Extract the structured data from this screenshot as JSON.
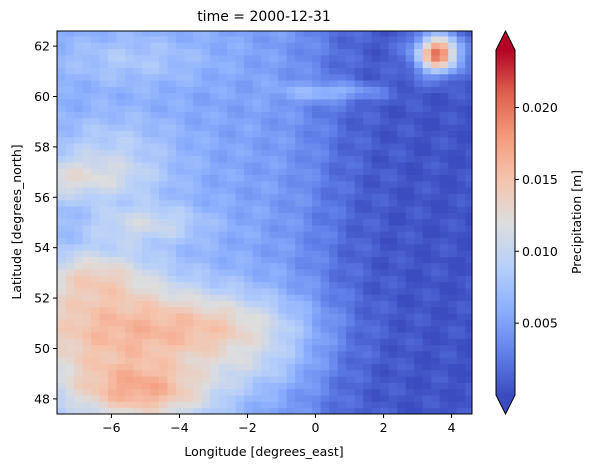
{
  "chart_data": {
    "type": "heatmap",
    "title": "time = 2000-12-31",
    "xlabel": "Longitude [degrees_east]",
    "ylabel": "Latitude [degrees_north]",
    "colorbar_label": "Precipitation [m]",
    "colormap": "coolwarm",
    "colorbar_extend": "both",
    "xlim": [
      -7.6,
      4.6
    ],
    "ylim": [
      47.4,
      62.6
    ],
    "clim": [
      0.0,
      0.024
    ],
    "xticks": [
      -6,
      -4,
      -2,
      0,
      2,
      4
    ],
    "yticks": [
      48,
      50,
      52,
      54,
      56,
      58,
      60,
      62
    ],
    "colorbar_ticks": [
      0.005,
      0.01,
      0.015,
      0.02
    ],
    "grid": false,
    "grid_resolution_deg": 0.25,
    "colors": {
      "min": "#3b4cc0",
      "mid": "#dddddd",
      "max": "#b40426"
    }
  }
}
